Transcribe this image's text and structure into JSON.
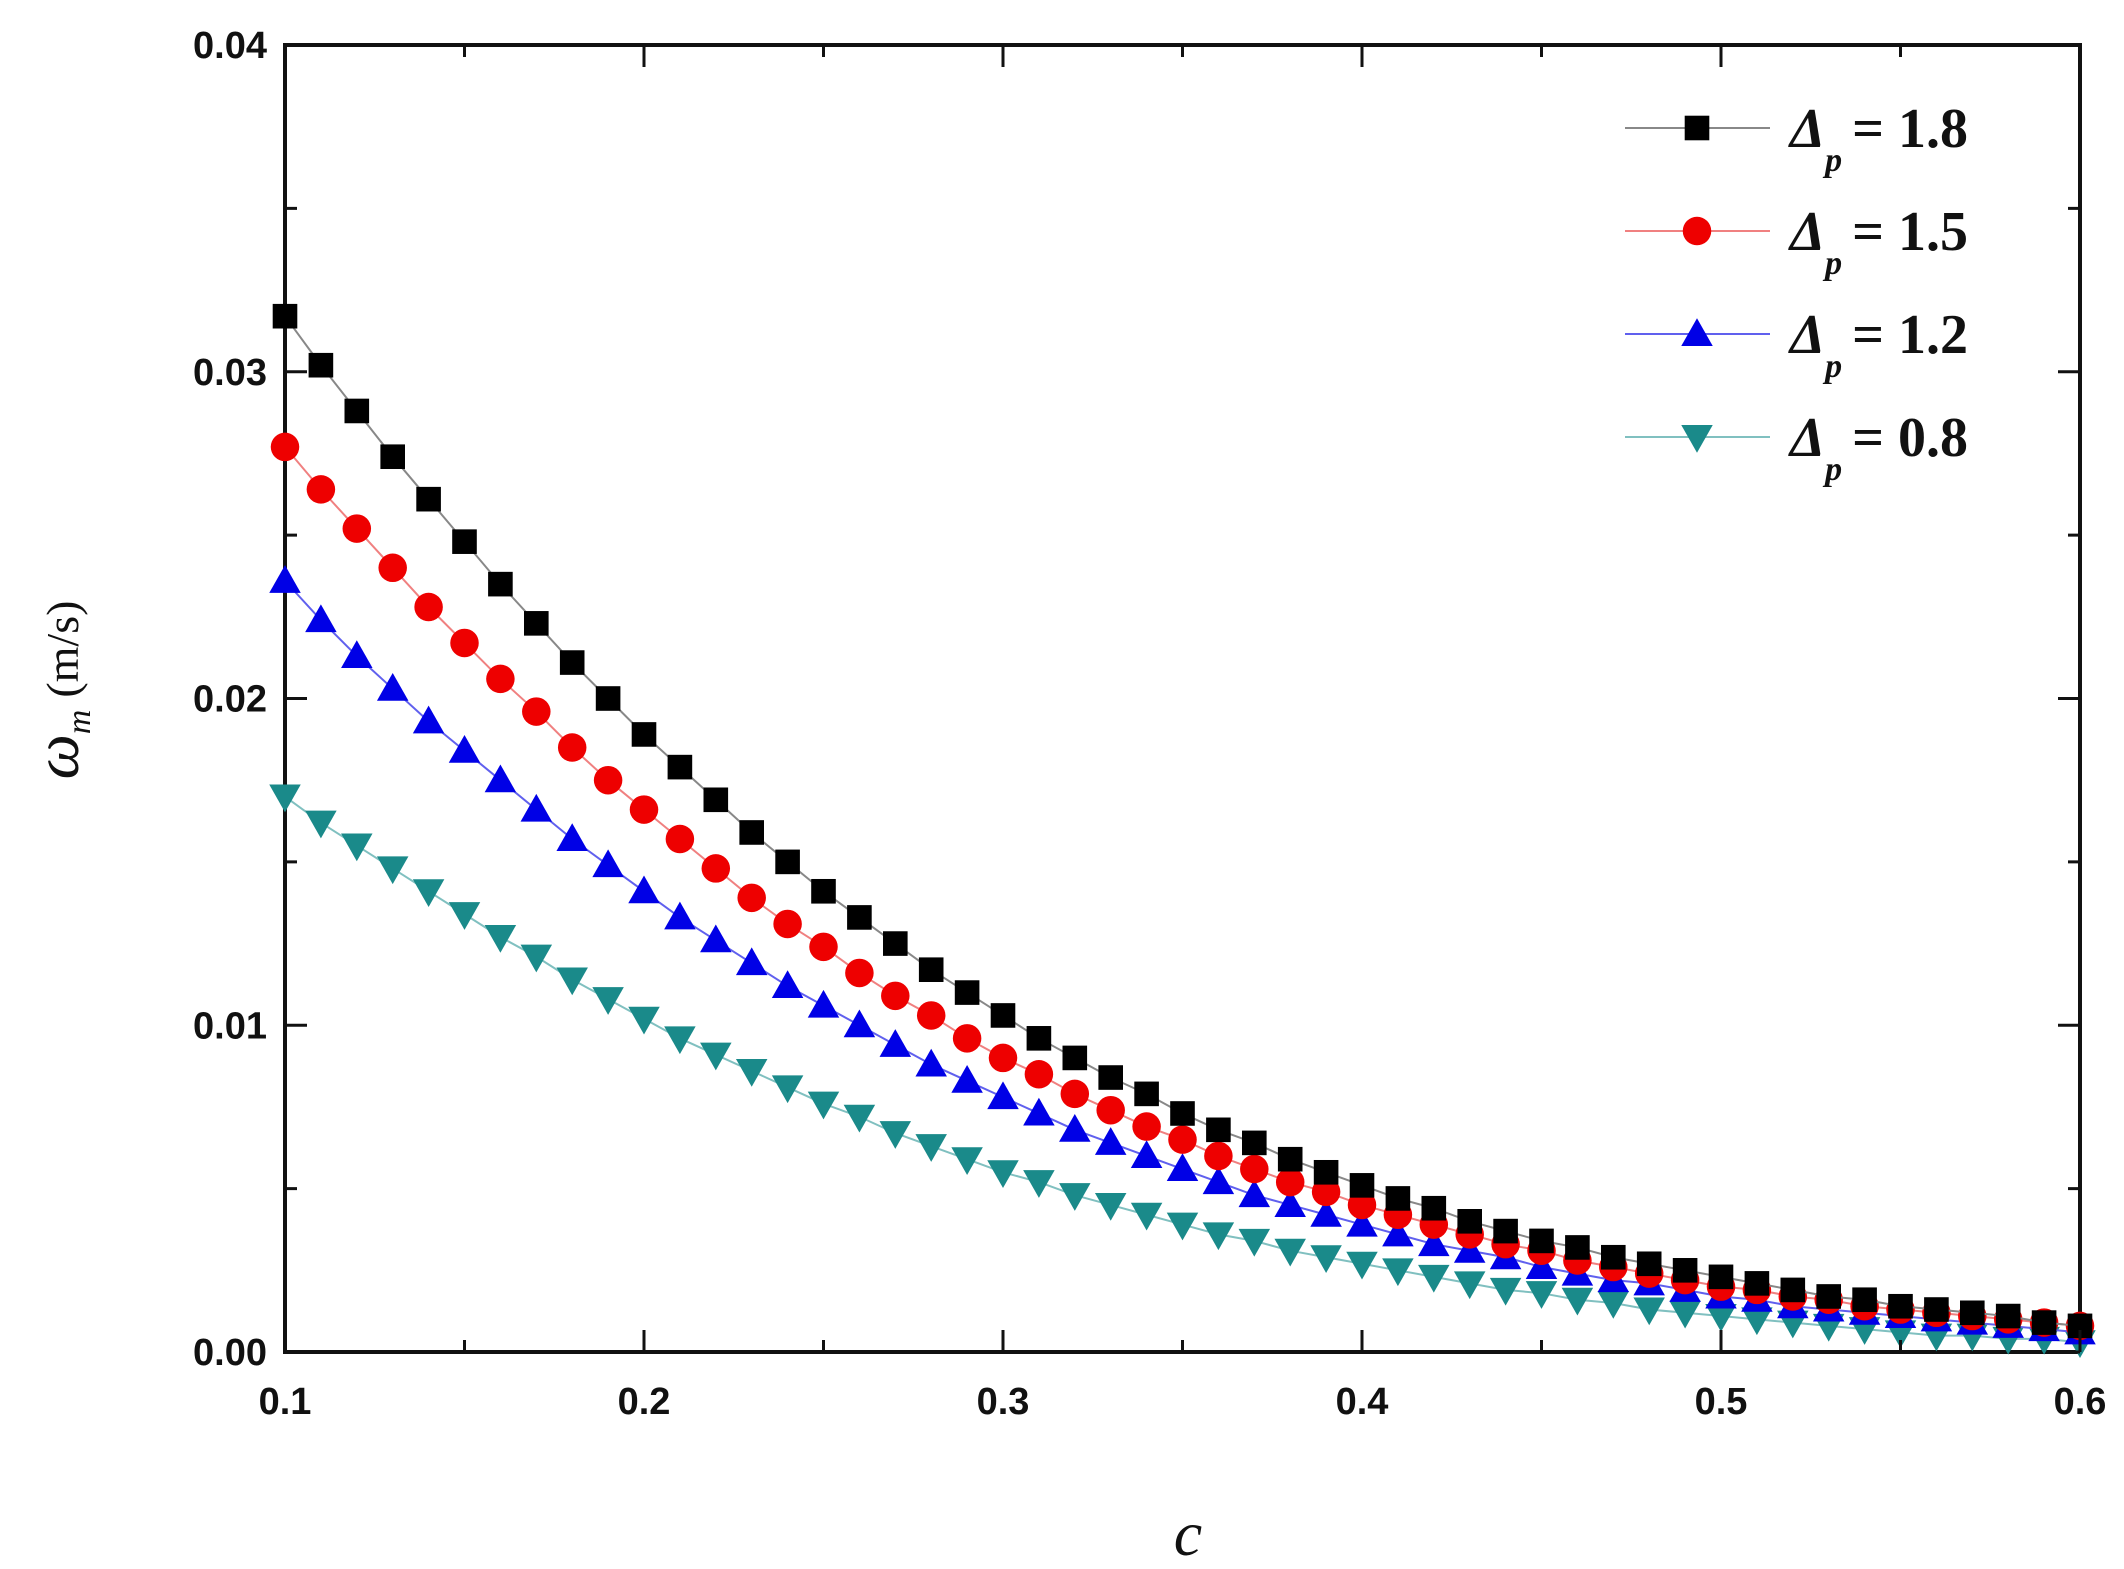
{
  "chart_data": {
    "type": "line",
    "xlabel": "c",
    "ylabel_symbol": "ω",
    "ylabel_subscript": "m",
    "ylabel_unit": "(m/s)",
    "xlim": [
      0.1,
      0.6
    ],
    "ylim": [
      0.0,
      0.04
    ],
    "xticks": [
      "0.1",
      "0.2",
      "0.3",
      "0.4",
      "0.5",
      "0.6"
    ],
    "yticks": [
      "0.00",
      "0.01",
      "0.02",
      "0.03",
      "0.04"
    ],
    "grid": false,
    "legend_position": "top-right",
    "x": [
      0.1,
      0.11,
      0.12,
      0.13,
      0.14,
      0.15,
      0.16,
      0.17,
      0.18,
      0.19,
      0.2,
      0.21,
      0.22,
      0.23,
      0.24,
      0.25,
      0.26,
      0.27,
      0.28,
      0.29,
      0.3,
      0.31,
      0.32,
      0.33,
      0.34,
      0.35,
      0.36,
      0.37,
      0.38,
      0.39,
      0.4,
      0.41,
      0.42,
      0.43,
      0.44,
      0.45,
      0.46,
      0.47,
      0.48,
      0.49,
      0.5,
      0.51,
      0.52,
      0.53,
      0.54,
      0.55,
      0.56,
      0.57,
      0.58,
      0.59,
      0.6
    ],
    "series": [
      {
        "name": "1.8",
        "symbol": "Δ",
        "subscript": "p",
        "marker": "square",
        "color": "#000000",
        "line_color": "#888888",
        "values": [
          0.0317,
          0.0302,
          0.0288,
          0.0274,
          0.0261,
          0.0248,
          0.0235,
          0.0223,
          0.0211,
          0.02,
          0.0189,
          0.0179,
          0.0169,
          0.0159,
          0.015,
          0.0141,
          0.0133,
          0.0125,
          0.0117,
          0.011,
          0.0103,
          0.0096,
          0.009,
          0.0084,
          0.0079,
          0.0073,
          0.0068,
          0.0064,
          0.0059,
          0.0055,
          0.0051,
          0.0047,
          0.0044,
          0.004,
          0.0037,
          0.0034,
          0.0032,
          0.0029,
          0.0027,
          0.0025,
          0.0023,
          0.0021,
          0.0019,
          0.0017,
          0.0016,
          0.0014,
          0.0013,
          0.0012,
          0.0011,
          0.0009,
          0.0008
        ]
      },
      {
        "name": "1.5",
        "symbol": "Δ",
        "subscript": "p",
        "marker": "circle",
        "color": "#ee0000",
        "line_color": "#f08080",
        "values": [
          0.0277,
          0.0264,
          0.0252,
          0.024,
          0.0228,
          0.0217,
          0.0206,
          0.0196,
          0.0185,
          0.0175,
          0.0166,
          0.0157,
          0.0148,
          0.0139,
          0.0131,
          0.0124,
          0.0116,
          0.0109,
          0.0103,
          0.0096,
          0.009,
          0.0085,
          0.0079,
          0.0074,
          0.0069,
          0.0065,
          0.006,
          0.0056,
          0.0052,
          0.0049,
          0.0045,
          0.0042,
          0.0039,
          0.0036,
          0.0033,
          0.0031,
          0.0028,
          0.0026,
          0.0024,
          0.0022,
          0.002,
          0.0019,
          0.0017,
          0.0016,
          0.0014,
          0.0013,
          0.0012,
          0.0011,
          0.001,
          0.0009,
          0.0008
        ]
      },
      {
        "name": "1.2",
        "symbol": "Δ",
        "subscript": "p",
        "marker": "triangle-up",
        "color": "#0000e6",
        "line_color": "#6060ee",
        "values": [
          0.0236,
          0.0224,
          0.0213,
          0.0203,
          0.0193,
          0.0184,
          0.0175,
          0.0166,
          0.0157,
          0.0149,
          0.0141,
          0.0133,
          0.0126,
          0.0119,
          0.0112,
          0.0106,
          0.01,
          0.0094,
          0.0088,
          0.0083,
          0.0078,
          0.0073,
          0.0068,
          0.0064,
          0.006,
          0.0056,
          0.0052,
          0.0048,
          0.0045,
          0.0042,
          0.0039,
          0.0036,
          0.0033,
          0.0031,
          0.0029,
          0.0026,
          0.0024,
          0.0022,
          0.0021,
          0.0019,
          0.0017,
          0.0016,
          0.0014,
          0.0013,
          0.0012,
          0.0011,
          0.001,
          0.0009,
          0.0008,
          0.0007,
          0.0006
        ]
      },
      {
        "name": "0.8",
        "symbol": "Δ",
        "subscript": "p",
        "marker": "triangle-down",
        "color": "#1a8a8a",
        "line_color": "#80c0c0",
        "values": [
          0.017,
          0.0162,
          0.0155,
          0.0148,
          0.0141,
          0.0134,
          0.0127,
          0.0121,
          0.0114,
          0.0108,
          0.0102,
          0.0096,
          0.0091,
          0.0086,
          0.0081,
          0.0076,
          0.0072,
          0.0067,
          0.0063,
          0.0059,
          0.0055,
          0.0052,
          0.0048,
          0.0045,
          0.0042,
          0.0039,
          0.0036,
          0.0034,
          0.0031,
          0.0029,
          0.0027,
          0.0025,
          0.0023,
          0.0021,
          0.0019,
          0.0018,
          0.0016,
          0.0015,
          0.0013,
          0.0012,
          0.0011,
          0.001,
          0.0009,
          0.0008,
          0.0007,
          0.0006,
          0.0005,
          0.0005,
          0.0004,
          0.0004,
          0.0003
        ]
      }
    ]
  }
}
